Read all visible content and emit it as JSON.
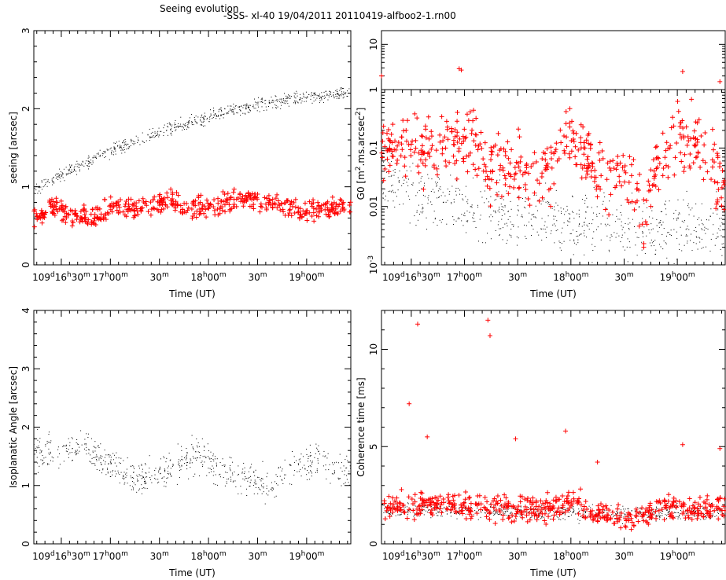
{
  "header": {
    "title": "Seeing evolution",
    "subtitle": "-SSS-   xl-40  19/04/2011  20110419-alfboo2-1.rn00"
  },
  "series_colors": {
    "black": "#000000",
    "red": "#ff0000"
  },
  "time_ticks": [
    {
      "t": 16.5,
      "main": "109",
      "sup1": "d",
      "mid": "16",
      "sup2": "h",
      "end": "30",
      "sup3": "m"
    },
    {
      "t": 17.0,
      "main": "",
      "sup1": "",
      "mid": "17",
      "sup2": "h",
      "end": "00",
      "sup3": "m"
    },
    {
      "t": 17.5,
      "main": "",
      "sup1": "",
      "mid": "",
      "sup2": "",
      "end": "30",
      "sup3": "m"
    },
    {
      "t": 18.0,
      "main": "",
      "sup1": "",
      "mid": "18",
      "sup2": "h",
      "end": "00",
      "sup3": "m"
    },
    {
      "t": 18.5,
      "main": "",
      "sup1": "",
      "mid": "",
      "sup2": "",
      "end": "30",
      "sup3": "m"
    },
    {
      "t": 19.0,
      "main": "",
      "sup1": "",
      "mid": "19",
      "sup2": "h",
      "end": "00",
      "sup3": "m"
    }
  ],
  "chart_data": [
    {
      "id": "seeing",
      "type": "scatter",
      "xlabel": "Time (UT)",
      "ylabel": "seeing [arcsec]",
      "xlim": [
        16.22,
        19.45
      ],
      "ylim": [
        0,
        3
      ],
      "yticks": [
        0,
        1,
        2,
        3
      ],
      "series": [
        {
          "color": "black",
          "marker": "dot",
          "knots": [
            [
              16.22,
              0.95
            ],
            [
              16.5,
              1.15
            ],
            [
              17.0,
              1.45
            ],
            [
              17.5,
              1.7
            ],
            [
              18.0,
              1.9
            ],
            [
              18.5,
              2.05
            ],
            [
              19.0,
              2.15
            ],
            [
              19.45,
              2.2
            ]
          ],
          "spread": 0.07
        },
        {
          "color": "red",
          "marker": "plus",
          "knots": [
            [
              16.22,
              0.6
            ],
            [
              16.4,
              0.75
            ],
            [
              16.6,
              0.65
            ],
            [
              16.8,
              0.6
            ],
            [
              17.0,
              0.72
            ],
            [
              17.2,
              0.75
            ],
            [
              17.4,
              0.7
            ],
            [
              17.6,
              0.85
            ],
            [
              17.8,
              0.7
            ],
            [
              18.0,
              0.72
            ],
            [
              18.2,
              0.8
            ],
            [
              18.4,
              0.85
            ],
            [
              18.6,
              0.8
            ],
            [
              18.8,
              0.75
            ],
            [
              19.0,
              0.7
            ],
            [
              19.2,
              0.72
            ],
            [
              19.45,
              0.75
            ]
          ],
          "spread": 0.12
        }
      ]
    },
    {
      "id": "gzero",
      "type": "scatter",
      "xlabel": "Time (UT)",
      "ylabel": "G0 [m².ms.arcsec²]",
      "ylabel_parts": [
        "G0 [m",
        "2",
        ".ms.arcsec",
        "2",
        "]"
      ],
      "xlim": [
        16.22,
        19.45
      ],
      "yscale": "log",
      "ylim": [
        0.001,
        1
      ],
      "yticks": [
        {
          "v": 0.001,
          "label": "10",
          "sup": "-3"
        },
        {
          "v": 0.01,
          "label": "0.01",
          "sup": ""
        },
        {
          "v": 0.1,
          "label": "0.1",
          "sup": ""
        },
        {
          "v": 1,
          "label": "1",
          "sup": ""
        }
      ],
      "inset": {
        "ylim": [
          1,
          20
        ],
        "yticks": [
          {
            "v": 1,
            "label": "1"
          },
          {
            "v": 10,
            "label": "10"
          }
        ],
        "outliers": [
          [
            16.22,
            2.0
          ],
          [
            16.95,
            2.9
          ],
          [
            16.97,
            2.7
          ],
          [
            19.05,
            2.5
          ],
          [
            19.4,
            1.5
          ]
        ]
      },
      "series": [
        {
          "color": "black",
          "marker": "dot",
          "knots": [
            [
              16.22,
              0.03
            ],
            [
              16.6,
              0.015
            ],
            [
              17.0,
              0.01
            ],
            [
              17.5,
              0.006
            ],
            [
              18.0,
              0.006
            ],
            [
              18.5,
              0.004
            ],
            [
              19.0,
              0.005
            ],
            [
              19.45,
              0.004
            ]
          ],
          "logspread": 0.45
        },
        {
          "color": "red",
          "marker": "plus",
          "knots": [
            [
              16.22,
              0.1
            ],
            [
              16.5,
              0.08
            ],
            [
              16.8,
              0.12
            ],
            [
              17.0,
              0.15
            ],
            [
              17.2,
              0.04
            ],
            [
              17.5,
              0.05
            ],
            [
              17.8,
              0.03
            ],
            [
              18.0,
              0.15
            ],
            [
              18.2,
              0.05
            ],
            [
              18.5,
              0.03
            ],
            [
              18.7,
              0.005
            ],
            [
              18.9,
              0.1
            ],
            [
              19.1,
              0.15
            ],
            [
              19.3,
              0.05
            ],
            [
              19.45,
              0.02
            ]
          ],
          "logspread": 0.5
        }
      ]
    },
    {
      "id": "isoplanatic",
      "type": "scatter",
      "xlabel": "Time (UT)",
      "ylabel": "Isoplanatic Angle [arcsec]",
      "xlim": [
        16.22,
        19.45
      ],
      "ylim": [
        0,
        4
      ],
      "yticks": [
        0,
        1,
        2,
        3,
        4
      ],
      "series": [
        {
          "color": "black",
          "marker": "dot",
          "knots": [
            [
              16.22,
              1.6
            ],
            [
              16.5,
              1.5
            ],
            [
              16.7,
              1.7
            ],
            [
              17.0,
              1.35
            ],
            [
              17.3,
              1.1
            ],
            [
              17.6,
              1.3
            ],
            [
              17.9,
              1.55
            ],
            [
              18.1,
              1.2
            ],
            [
              18.4,
              1.15
            ],
            [
              18.6,
              1.0
            ],
            [
              18.85,
              1.3
            ],
            [
              19.1,
              1.45
            ],
            [
              19.45,
              1.2
            ]
          ],
          "spread": 0.25
        }
      ]
    },
    {
      "id": "coherence",
      "type": "scatter",
      "xlabel": "Time (UT)",
      "ylabel": "Coherence time [ms]",
      "xlim": [
        16.22,
        19.45
      ],
      "ylim": [
        0,
        12
      ],
      "yticks": [
        0,
        5,
        10
      ],
      "outliers": [
        [
          16.48,
          7.2
        ],
        [
          16.56,
          11.3
        ],
        [
          16.65,
          5.5
        ],
        [
          17.22,
          11.5
        ],
        [
          17.24,
          10.7
        ],
        [
          17.48,
          5.4
        ],
        [
          17.95,
          5.8
        ],
        [
          18.25,
          4.2
        ],
        [
          19.05,
          5.1
        ],
        [
          19.4,
          4.9
        ]
      ],
      "series": [
        {
          "color": "black",
          "marker": "dot",
          "knots": [
            [
              16.22,
              1.8
            ],
            [
              17.0,
              1.7
            ],
            [
              18.0,
              1.6
            ],
            [
              19.0,
              1.6
            ],
            [
              19.45,
              1.6
            ]
          ],
          "spread": 0.35
        },
        {
          "color": "red",
          "marker": "plus",
          "knots": [
            [
              16.22,
              2.0
            ],
            [
              16.5,
              1.9
            ],
            [
              16.8,
              2.2
            ],
            [
              17.0,
              2.0
            ],
            [
              17.3,
              1.8
            ],
            [
              17.6,
              1.9
            ],
            [
              17.8,
              1.7
            ],
            [
              18.0,
              2.4
            ],
            [
              18.2,
              1.6
            ],
            [
              18.4,
              1.4
            ],
            [
              18.6,
              1.2
            ],
            [
              18.8,
              1.8
            ],
            [
              19.0,
              2.0
            ],
            [
              19.2,
              1.8
            ],
            [
              19.45,
              2.0
            ]
          ],
          "spread": 0.55
        }
      ]
    }
  ]
}
